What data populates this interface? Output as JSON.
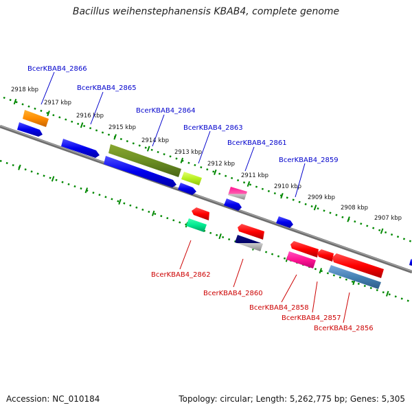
{
  "title": "Bacillus weihenstephanensis KBAB4, complete genome",
  "footer": {
    "accession": "Accession: NC_010184",
    "info": "Topology: circular; Length: 5,262,775 bp; Genes: 5,305"
  },
  "colors": {
    "backbone": "#777777",
    "tick": "#008800",
    "upper_label": "#0000cc",
    "lower_label": "#cc0000"
  },
  "kbp_ticks": [
    "2918 kbp",
    "2917 kbp",
    "2916 kbp",
    "2915 kbp",
    "2914 kbp",
    "2913 kbp",
    "2912 kbp",
    "2911 kbp",
    "2910 kbp",
    "2909 kbp",
    "2908 kbp",
    "2907 kbp"
  ],
  "upper_genes": [
    "BcerKBAB4_2866",
    "BcerKBAB4_2865",
    "BcerKBAB4_2864",
    "BcerKBAB4_2863",
    "BcerKBAB4_2861",
    "BcerKBAB4_2859"
  ],
  "lower_genes": [
    "BcerKBAB4_2862",
    "BcerKBAB4_2860",
    "BcerKBAB4_2858",
    "BcerKBAB4_2857",
    "BcerKBAB4_2856"
  ]
}
